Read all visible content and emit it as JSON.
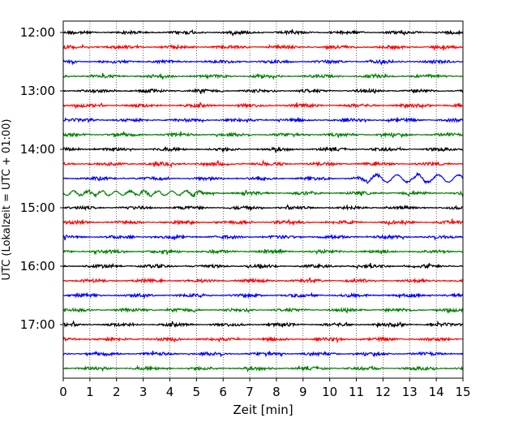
{
  "chart_data": {
    "type": "line",
    "title": "",
    "xlabel": "Zeit  [min]",
    "ylabel": "UTC (Lokalzeit = UTC + 01:00)",
    "xlim": [
      0,
      15
    ],
    "x_ticks": [
      "0",
      "1",
      "2",
      "3",
      "4",
      "5",
      "6",
      "7",
      "8",
      "9",
      "10",
      "11",
      "12",
      "13",
      "14",
      "15"
    ],
    "y_ticks": [
      "12:00",
      "13:00",
      "14:00",
      "15:00",
      "16:00",
      "17:00"
    ],
    "grid": "vertical-dotted",
    "trace_colors": [
      "#000000",
      "#ff0000",
      "#0000ff",
      "#008000"
    ],
    "trace_count": 24,
    "trace_start": "12:00",
    "trace_interval_min": 15,
    "event": {
      "trace": "14:30",
      "start_min": 10.8,
      "note": "larger oscillation continuing on 14:45 trace"
    }
  }
}
